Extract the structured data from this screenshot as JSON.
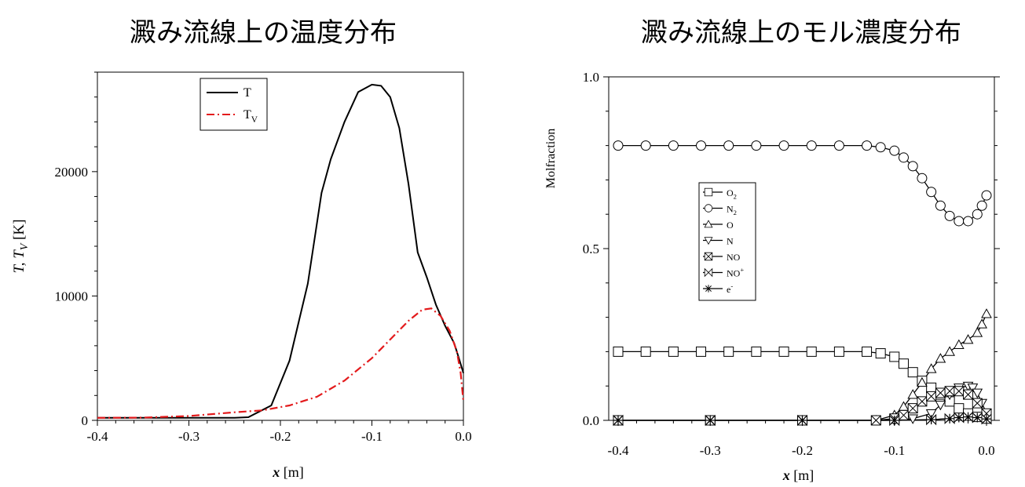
{
  "titles": {
    "left": "澱み流線上の温度分布",
    "right": "澱み流線上のモル濃度分布"
  },
  "chart_data": [
    {
      "type": "line",
      "title": "澱み流線上の温度分布",
      "xlabel": "x [m]",
      "ylabel": "T, T_V [K]",
      "xlim": [
        -0.4,
        0.0
      ],
      "ylim": [
        0,
        28000
      ],
      "xticks": [
        "-0.4",
        "-0.3",
        "-0.2",
        "-0.1",
        "0.0"
      ],
      "xtick_values": [
        -0.4,
        -0.3,
        -0.2,
        -0.1,
        0.0
      ],
      "yticks": [
        "0",
        "10000",
        "20000"
      ],
      "ytick_values": [
        0,
        10000,
        20000
      ],
      "legend_position": "top-center",
      "series": [
        {
          "name": "T",
          "legend": "T",
          "legend_sub": "",
          "color": "#000000",
          "dash": "solid",
          "x": [
            -0.4,
            -0.3,
            -0.25,
            -0.235,
            -0.21,
            -0.19,
            -0.17,
            -0.155,
            -0.145,
            -0.13,
            -0.115,
            -0.1,
            -0.09,
            -0.08,
            -0.07,
            -0.06,
            -0.05,
            -0.04,
            -0.03,
            -0.02,
            -0.01,
            -0.005,
            0.0
          ],
          "y": [
            200,
            200,
            200,
            250,
            1200,
            4800,
            11000,
            18300,
            21000,
            24000,
            26400,
            27000,
            26900,
            26000,
            23500,
            19000,
            13500,
            11500,
            9300,
            7600,
            6200,
            5000,
            3800
          ]
        },
        {
          "name": "Tv",
          "legend": "T",
          "legend_sub": "V",
          "color": "#e31a1c",
          "dash": "dashdot",
          "x": [
            -0.4,
            -0.35,
            -0.3,
            -0.25,
            -0.22,
            -0.19,
            -0.16,
            -0.13,
            -0.1,
            -0.08,
            -0.06,
            -0.045,
            -0.035,
            -0.025,
            -0.015,
            -0.007,
            -0.003,
            0.0
          ],
          "y": [
            200,
            220,
            350,
            650,
            800,
            1200,
            1900,
            3200,
            5000,
            6500,
            8000,
            8900,
            9000,
            8400,
            7200,
            5500,
            3800,
            1500
          ]
        }
      ]
    },
    {
      "type": "line",
      "title": "澱み流線上のモル濃度分布",
      "xlabel": "x [m]",
      "ylabel": "Molfraction",
      "xlim": [
        -0.4,
        0.0
      ],
      "ylim": [
        0,
        1.0
      ],
      "xticks": [
        "-0.4",
        "-0.3",
        "-0.2",
        "-0.1",
        "0.0"
      ],
      "xtick_values": [
        -0.4,
        -0.3,
        -0.2,
        -0.1,
        0.0
      ],
      "yticks": [
        "0.0",
        "0.5",
        "1.0"
      ],
      "ytick_values": [
        0.0,
        0.5,
        1.0
      ],
      "legend_position": "center-left",
      "series": [
        {
          "name": "O2",
          "legend": "O",
          "legend_sub": "2",
          "legend_sup": "",
          "marker": "square",
          "x": [
            -0.4,
            -0.37,
            -0.34,
            -0.31,
            -0.28,
            -0.25,
            -0.22,
            -0.19,
            -0.16,
            -0.13,
            -0.115,
            -0.1,
            -0.09,
            -0.08,
            -0.07,
            -0.06,
            -0.05,
            -0.04,
            -0.03,
            -0.02,
            -0.01,
            0.0
          ],
          "y": [
            0.2,
            0.2,
            0.2,
            0.2,
            0.2,
            0.2,
            0.2,
            0.2,
            0.2,
            0.2,
            0.195,
            0.185,
            0.165,
            0.14,
            0.115,
            0.095,
            0.075,
            0.055,
            0.035,
            0.02,
            0.01,
            0.005
          ]
        },
        {
          "name": "N2",
          "legend": "N",
          "legend_sub": "2",
          "legend_sup": "",
          "marker": "circle",
          "x": [
            -0.4,
            -0.37,
            -0.34,
            -0.31,
            -0.28,
            -0.25,
            -0.22,
            -0.19,
            -0.16,
            -0.13,
            -0.115,
            -0.1,
            -0.09,
            -0.08,
            -0.07,
            -0.06,
            -0.05,
            -0.04,
            -0.03,
            -0.02,
            -0.01,
            -0.005,
            0.0
          ],
          "y": [
            0.8,
            0.8,
            0.8,
            0.8,
            0.8,
            0.8,
            0.8,
            0.8,
            0.8,
            0.8,
            0.795,
            0.785,
            0.765,
            0.74,
            0.705,
            0.665,
            0.625,
            0.595,
            0.58,
            0.58,
            0.6,
            0.625,
            0.655
          ]
        },
        {
          "name": "O",
          "legend": "O",
          "legend_sub": "",
          "legend_sup": "",
          "marker": "triangle",
          "x": [
            -0.4,
            -0.3,
            -0.2,
            -0.12,
            -0.1,
            -0.09,
            -0.08,
            -0.07,
            -0.06,
            -0.05,
            -0.04,
            -0.03,
            -0.02,
            -0.01,
            -0.005,
            0.0
          ],
          "y": [
            0.0,
            0.0,
            0.0,
            0.0,
            0.015,
            0.04,
            0.075,
            0.11,
            0.15,
            0.18,
            0.2,
            0.22,
            0.235,
            0.255,
            0.28,
            0.31
          ]
        },
        {
          "name": "N",
          "legend": "N",
          "legend_sub": "",
          "legend_sup": "",
          "marker": "triangle-down",
          "x": [
            -0.4,
            -0.3,
            -0.2,
            -0.1,
            -0.08,
            -0.06,
            -0.05,
            -0.04,
            -0.03,
            -0.02,
            -0.015,
            -0.01,
            -0.005,
            0.0
          ],
          "y": [
            0.0,
            0.0,
            0.0,
            0.0,
            0.005,
            0.02,
            0.045,
            0.075,
            0.095,
            0.1,
            0.095,
            0.08,
            0.05,
            0.02
          ]
        },
        {
          "name": "NO",
          "legend": "NO",
          "legend_sub": "",
          "legend_sup": "",
          "marker": "x-square",
          "x": [
            -0.4,
            -0.3,
            -0.2,
            -0.12,
            -0.1,
            -0.09,
            -0.08,
            -0.07,
            -0.06,
            -0.05,
            -0.04,
            -0.03,
            -0.02,
            -0.01,
            0.0
          ],
          "y": [
            0.0,
            0.0,
            0.0,
            0.0,
            0.005,
            0.015,
            0.035,
            0.055,
            0.07,
            0.08,
            0.085,
            0.085,
            0.075,
            0.05,
            0.02
          ]
        },
        {
          "name": "NO+",
          "legend": "NO",
          "legend_sub": "",
          "legend_sup": "+",
          "marker": "bowtie",
          "x": [
            -0.4,
            -0.3,
            -0.2,
            -0.1,
            -0.06,
            -0.04,
            -0.03,
            -0.02,
            -0.01,
            0.0
          ],
          "y": [
            0.0,
            0.0,
            0.0,
            0.0,
            0.002,
            0.005,
            0.008,
            0.01,
            0.008,
            0.004
          ]
        },
        {
          "name": "e-",
          "legend": "e",
          "legend_sub": "",
          "legend_sup": "-",
          "marker": "asterisk",
          "x": [
            -0.4,
            -0.3,
            -0.2,
            -0.1,
            -0.06,
            -0.04,
            -0.03,
            -0.02,
            -0.01,
            0.0
          ],
          "y": [
            0.0,
            0.0,
            0.0,
            0.0,
            0.002,
            0.005,
            0.008,
            0.01,
            0.008,
            0.004
          ]
        }
      ]
    }
  ]
}
